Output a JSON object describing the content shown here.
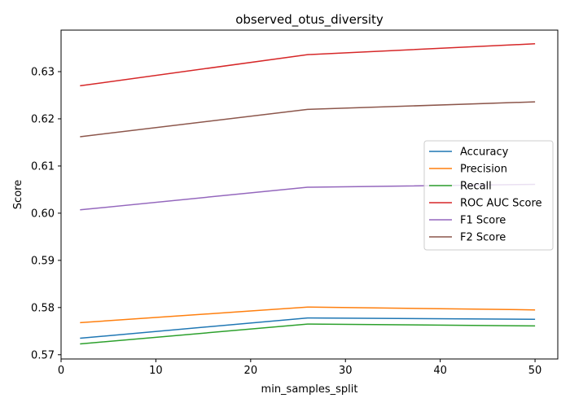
{
  "chart_data": {
    "type": "line",
    "title": "observed_otus_diversity",
    "xlabel": "min_samples_split",
    "ylabel": "Score",
    "x": [
      2,
      26,
      50
    ],
    "xlim": [
      0,
      52.4
    ],
    "ylim": [
      0.5691,
      0.6388
    ],
    "xticks": [
      0,
      10,
      20,
      30,
      40,
      50
    ],
    "yticks": [
      0.57,
      0.58,
      0.59,
      0.6,
      0.61,
      0.62,
      0.63
    ],
    "ytick_labels": [
      "0.57",
      "0.58",
      "0.59",
      "0.60",
      "0.61",
      "0.62",
      "0.63"
    ],
    "grid": false,
    "legend_position": "center-right",
    "series": [
      {
        "name": "Accuracy",
        "color": "#1f77b4",
        "values": [
          0.5735,
          0.5778,
          0.5775
        ]
      },
      {
        "name": "Precision",
        "color": "#ff7f0e",
        "values": [
          0.5768,
          0.5801,
          0.5795
        ]
      },
      {
        "name": "Recall",
        "color": "#2ca02c",
        "values": [
          0.5723,
          0.5765,
          0.5761
        ]
      },
      {
        "name": "ROC AUC Score",
        "color": "#d62728",
        "values": [
          0.627,
          0.6336,
          0.6359
        ]
      },
      {
        "name": "F1 Score",
        "color": "#9467bd",
        "values": [
          0.6007,
          0.6055,
          0.6061
        ]
      },
      {
        "name": "F2 Score",
        "color": "#8c564b",
        "values": [
          0.6162,
          0.622,
          0.6236
        ]
      }
    ]
  }
}
